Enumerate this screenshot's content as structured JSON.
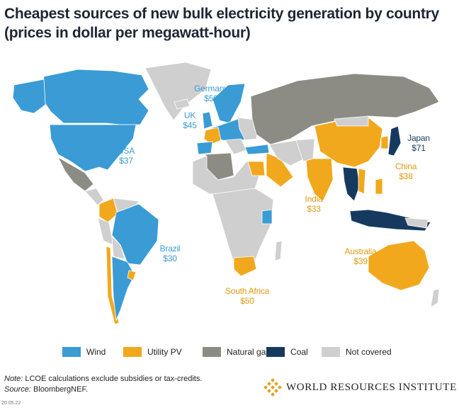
{
  "title": {
    "line1": "Cheapest sources of new bulk electricity generation by country",
    "line2": "(prices in dollar per megawatt-hour)"
  },
  "colors": {
    "wind": "#3a9bd5",
    "solar": "#f2a81d",
    "gas": "#8c8c84",
    "coal": "#163a5f",
    "none": "#cfcfcf",
    "ocean": "#ffffff"
  },
  "legend": [
    {
      "key": "wind",
      "label": "Wind"
    },
    {
      "key": "solar",
      "label": "Utility PV"
    },
    {
      "key": "gas",
      "label": "Natural gas"
    },
    {
      "key": "coal",
      "label": "Coal"
    },
    {
      "key": "none",
      "label": "Not covered"
    }
  ],
  "labels": [
    {
      "id": "usa",
      "name": "USA",
      "price": "$37",
      "key": "wind"
    },
    {
      "id": "germany",
      "name": "Germany",
      "price": "$50",
      "key": "wind"
    },
    {
      "id": "uk",
      "name": "UK",
      "price": "$45",
      "key": "wind"
    },
    {
      "id": "japan",
      "name": "Japan",
      "price": "$71",
      "key": "coal"
    },
    {
      "id": "china",
      "name": "China",
      "price": "$38",
      "key": "solar"
    },
    {
      "id": "india",
      "name": "India",
      "price": "$33",
      "key": "solar"
    },
    {
      "id": "brazil",
      "name": "Brazil",
      "price": "$30",
      "key": "wind"
    },
    {
      "id": "australia",
      "name": "Australia",
      "price": "$39",
      "key": "solar"
    },
    {
      "id": "south-africa",
      "name": "South Africa",
      "price": "$50",
      "key": "solar"
    }
  ],
  "note": {
    "label": "Note:",
    "text": " LCOE calculations exclude subsidies or tax-credits.",
    "source_label": "Source:",
    "source_text": " BloombergNEF."
  },
  "date": "20.05.22",
  "logo_text": "WORLD RESOURCES INSTITUTE"
}
